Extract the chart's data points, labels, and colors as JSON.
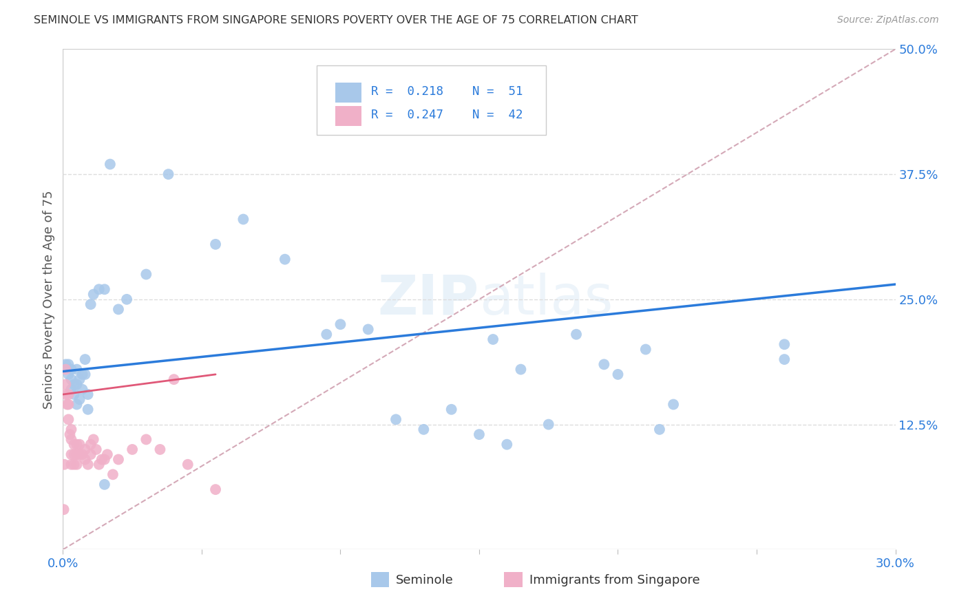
{
  "title": "SEMINOLE VS IMMIGRANTS FROM SINGAPORE SENIORS POVERTY OVER THE AGE OF 75 CORRELATION CHART",
  "source": "Source: ZipAtlas.com",
  "ylabel": "Seniors Poverty Over the Age of 75",
  "x_min": 0.0,
  "x_max": 0.3,
  "y_min": 0.0,
  "y_max": 0.5,
  "watermark": "ZIPatlas",
  "blue_line_color": "#2b7bdb",
  "pink_line_color": "#e05878",
  "ref_line_color": "#d0a0b0",
  "scatter_blue": "#a8c8ea",
  "scatter_pink": "#f0b0c8",
  "grid_color": "#dddddd",
  "title_color": "#333333",
  "axis_label_color": "#555555",
  "tick_color_right": "#2b7bdb",
  "tick_color_bottom": "#2b7bdb",
  "seminole_x": [
    0.001,
    0.002,
    0.002,
    0.003,
    0.003,
    0.003,
    0.004,
    0.004,
    0.005,
    0.005,
    0.005,
    0.006,
    0.006,
    0.007,
    0.007,
    0.008,
    0.008,
    0.009,
    0.009,
    0.01,
    0.011,
    0.013,
    0.015,
    0.017,
    0.02,
    0.023,
    0.03,
    0.038,
    0.055,
    0.065,
    0.08,
    0.095,
    0.1,
    0.11,
    0.12,
    0.13,
    0.14,
    0.15,
    0.155,
    0.16,
    0.165,
    0.175,
    0.185,
    0.195,
    0.2,
    0.21,
    0.215,
    0.22,
    0.26,
    0.26,
    0.015
  ],
  "seminole_y": [
    0.185,
    0.185,
    0.175,
    0.18,
    0.17,
    0.16,
    0.155,
    0.165,
    0.18,
    0.165,
    0.145,
    0.15,
    0.17,
    0.175,
    0.16,
    0.175,
    0.19,
    0.155,
    0.14,
    0.245,
    0.255,
    0.26,
    0.26,
    0.385,
    0.24,
    0.25,
    0.275,
    0.375,
    0.305,
    0.33,
    0.29,
    0.215,
    0.225,
    0.22,
    0.13,
    0.12,
    0.14,
    0.115,
    0.21,
    0.105,
    0.18,
    0.125,
    0.215,
    0.185,
    0.175,
    0.2,
    0.12,
    0.145,
    0.205,
    0.19,
    0.065
  ],
  "singapore_x": [
    0.0003,
    0.0005,
    0.001,
    0.001,
    0.001,
    0.0015,
    0.002,
    0.002,
    0.002,
    0.0025,
    0.003,
    0.003,
    0.003,
    0.003,
    0.004,
    0.004,
    0.004,
    0.005,
    0.005,
    0.005,
    0.006,
    0.006,
    0.007,
    0.008,
    0.008,
    0.009,
    0.01,
    0.01,
    0.011,
    0.012,
    0.013,
    0.014,
    0.015,
    0.016,
    0.018,
    0.02,
    0.025,
    0.03,
    0.035,
    0.04,
    0.045,
    0.055
  ],
  "singapore_y": [
    0.04,
    0.085,
    0.18,
    0.165,
    0.155,
    0.145,
    0.155,
    0.145,
    0.13,
    0.115,
    0.12,
    0.11,
    0.095,
    0.085,
    0.095,
    0.105,
    0.085,
    0.095,
    0.085,
    0.105,
    0.095,
    0.105,
    0.095,
    0.09,
    0.1,
    0.085,
    0.095,
    0.105,
    0.11,
    0.1,
    0.085,
    0.09,
    0.09,
    0.095,
    0.075,
    0.09,
    0.1,
    0.11,
    0.1,
    0.17,
    0.085,
    0.06
  ]
}
